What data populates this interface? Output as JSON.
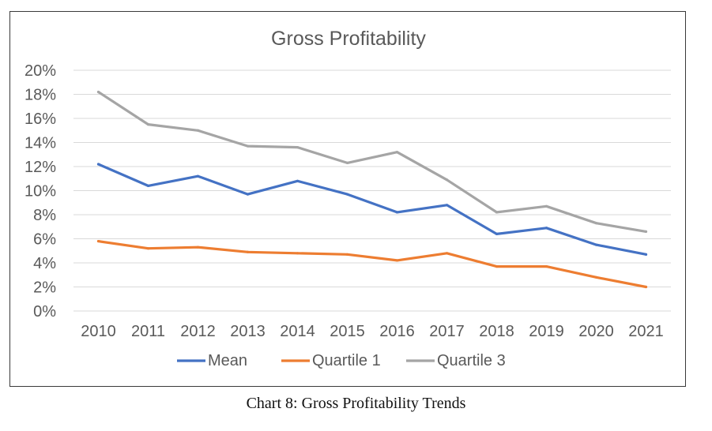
{
  "caption": "Chart 8: Gross Profitability Trends",
  "chart_data": {
    "type": "line",
    "title": "Gross Profitability",
    "xlabel": "",
    "ylabel": "",
    "categories": [
      "2010",
      "2011",
      "2012",
      "2013",
      "2014",
      "2015",
      "2016",
      "2017",
      "2018",
      "2019",
      "2020",
      "2021"
    ],
    "ylim": [
      0,
      20
    ],
    "yticks": [
      "0%",
      "2%",
      "4%",
      "6%",
      "8%",
      "10%",
      "12%",
      "14%",
      "16%",
      "18%",
      "20%"
    ],
    "grid": true,
    "legend_position": "bottom",
    "series": [
      {
        "name": "Mean",
        "color": "#4472C4",
        "values": [
          12.2,
          10.4,
          11.2,
          9.7,
          10.8,
          9.7,
          8.2,
          8.8,
          6.4,
          6.9,
          5.5,
          4.7
        ]
      },
      {
        "name": "Quartile 1",
        "color": "#ED7D31",
        "values": [
          5.8,
          5.2,
          5.3,
          4.9,
          4.8,
          4.7,
          4.2,
          4.8,
          3.7,
          3.7,
          2.8,
          2.0
        ]
      },
      {
        "name": "Quartile 3",
        "color": "#A5A5A5",
        "values": [
          18.2,
          15.5,
          15.0,
          13.7,
          13.6,
          12.3,
          13.2,
          10.9,
          8.2,
          8.7,
          7.3,
          6.6
        ]
      }
    ]
  }
}
